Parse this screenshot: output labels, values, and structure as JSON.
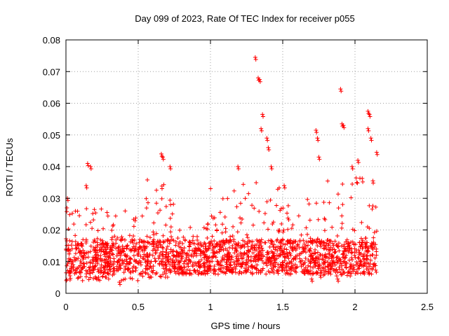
{
  "chart_data": {
    "type": "scatter",
    "title": "Day 099 of 2023, Rate Of TEC Index for receiver p055",
    "xlabel": "GPS time / hours",
    "ylabel": "ROTI / TECUs",
    "xlim": [
      0,
      2.5
    ],
    "ylim": [
      0,
      0.08
    ],
    "grid": true,
    "marker": "+",
    "color": "#ff0000",
    "x_ticks": [
      0,
      0.5,
      1,
      1.5,
      2,
      2.5
    ],
    "x_tick_labels": [
      "0",
      "0.5",
      "1",
      "1.5",
      "2",
      "2.5"
    ],
    "y_ticks": [
      0,
      0.01,
      0.02,
      0.03,
      0.04,
      0.05,
      0.06,
      0.07,
      0.08
    ],
    "y_tick_labels": [
      "0",
      "0.01",
      "0.02",
      "0.03",
      "0.04",
      "0.05",
      "0.06",
      "0.07",
      "0.08"
    ],
    "x_range_of_data": [
      0,
      2.15
    ],
    "series": [
      {
        "name": "ROTI",
        "notable_points": [
          {
            "x": 0.01,
            "y": 0.03
          },
          {
            "x": 0.14,
            "y": 0.034
          },
          {
            "x": 0.15,
            "y": 0.041
          },
          {
            "x": 0.17,
            "y": 0.04
          },
          {
            "x": 0.66,
            "y": 0.044
          },
          {
            "x": 0.67,
            "y": 0.043
          },
          {
            "x": 0.72,
            "y": 0.04
          },
          {
            "x": 1.19,
            "y": 0.04
          },
          {
            "x": 1.31,
            "y": 0.0745
          },
          {
            "x": 1.33,
            "y": 0.068
          },
          {
            "x": 1.34,
            "y": 0.0675
          },
          {
            "x": 1.36,
            "y": 0.0565
          },
          {
            "x": 1.35,
            "y": 0.052
          },
          {
            "x": 1.39,
            "y": 0.049
          },
          {
            "x": 1.4,
            "y": 0.046
          },
          {
            "x": 1.42,
            "y": 0.04
          },
          {
            "x": 1.51,
            "y": 0.034
          },
          {
            "x": 1.73,
            "y": 0.0515
          },
          {
            "x": 1.74,
            "y": 0.049
          },
          {
            "x": 1.75,
            "y": 0.043
          },
          {
            "x": 1.9,
            "y": 0.0645
          },
          {
            "x": 1.91,
            "y": 0.0535
          },
          {
            "x": 1.92,
            "y": 0.053
          },
          {
            "x": 2.09,
            "y": 0.0575
          },
          {
            "x": 2.1,
            "y": 0.0565
          },
          {
            "x": 2.09,
            "y": 0.052
          },
          {
            "x": 2.11,
            "y": 0.049
          },
          {
            "x": 2.15,
            "y": 0.0445
          },
          {
            "x": 2.02,
            "y": 0.042
          },
          {
            "x": 1.98,
            "y": 0.04
          },
          {
            "x": 1.7,
            "y": 0.0045
          },
          {
            "x": 1.88,
            "y": 0.0045
          },
          {
            "x": 0.37,
            "y": 0.0035
          }
        ],
        "clusters": [
          {
            "x_from": 0.0,
            "x_to": 0.25,
            "y_low": 0.004,
            "y_high": 0.027
          },
          {
            "x_from": 0.25,
            "x_to": 0.55,
            "y_low": 0.004,
            "y_high": 0.026
          },
          {
            "x_from": 0.55,
            "x_to": 0.75,
            "y_low": 0.005,
            "y_high": 0.036
          },
          {
            "x_from": 0.75,
            "x_to": 1.0,
            "y_low": 0.006,
            "y_high": 0.022
          },
          {
            "x_from": 1.0,
            "x_to": 1.25,
            "y_low": 0.007,
            "y_high": 0.035
          },
          {
            "x_from": 1.25,
            "x_to": 1.5,
            "y_low": 0.007,
            "y_high": 0.036
          },
          {
            "x_from": 1.5,
            "x_to": 1.75,
            "y_low": 0.006,
            "y_high": 0.03
          },
          {
            "x_from": 1.75,
            "x_to": 2.0,
            "y_low": 0.005,
            "y_high": 0.036
          },
          {
            "x_from": 2.0,
            "x_to": 2.15,
            "y_low": 0.006,
            "y_high": 0.038
          }
        ]
      }
    ]
  }
}
